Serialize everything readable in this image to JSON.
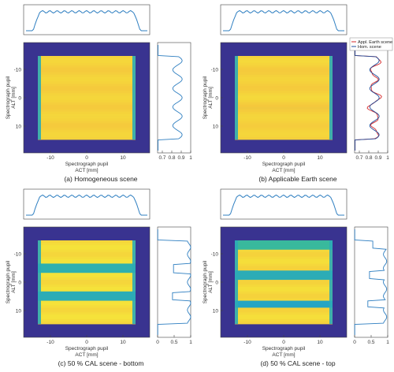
{
  "chart_data": [
    {
      "type": "heatmap",
      "caption": "(a) Homogeneous scene",
      "xlabel": "Spectrograph pupil\nACT [mm]",
      "ylabel": "Spectrograph pupil\nALT [mm]",
      "x_ticks": [
        "-10",
        "0",
        "10"
      ],
      "y_ticks": [
        "-10",
        "0",
        "10"
      ],
      "side_ticks": [
        "0.7",
        "0.8",
        "0.9",
        "1"
      ],
      "side_range": [
        0.65,
        1.0
      ],
      "scene": "homogeneous",
      "colormap": [
        "#3b2c8c",
        "#1f9fd0",
        "#3fbf90",
        "#f5e33a"
      ]
    },
    {
      "type": "heatmap",
      "caption": "(b) Applicable Earth scene",
      "xlabel": "Spectrograph pupil\nACT [mm]",
      "ylabel": "Spectrograph pupil\nALT [mm]",
      "x_ticks": [
        "-10",
        "0",
        "10"
      ],
      "y_ticks": [
        "-10",
        "0",
        "10"
      ],
      "side_ticks": [
        "0.7",
        "0.8",
        "0.9",
        "1"
      ],
      "side_range": [
        0.65,
        1.0
      ],
      "scene": "earth",
      "legend": [
        "Appl. Earth scene",
        "Hom. scene"
      ],
      "legend_colors": [
        "#d62728",
        "#1f4e9c"
      ],
      "colormap": [
        "#3b2c8c",
        "#1f9fd0",
        "#3fbf90",
        "#f5e33a"
      ]
    },
    {
      "type": "heatmap",
      "caption": "(c) 50 % CAL scene - bottom",
      "xlabel": "Spectrograph pupil\nACT [mm]",
      "ylabel": "Spectrograph pupil\nALT [mm]",
      "x_ticks": [
        "-10",
        "0",
        "10"
      ],
      "y_ticks": [
        "-10",
        "0",
        "10"
      ],
      "side_ticks": [
        "0",
        "0.5",
        "1"
      ],
      "side_range": [
        0.0,
        1.0
      ],
      "scene": "cal-bottom",
      "colormap": [
        "#3b2c8c",
        "#1f9fd0",
        "#3fbf90",
        "#f5e33a"
      ]
    },
    {
      "type": "heatmap",
      "caption": "(d) 50 % CAL scene - top",
      "xlabel": "Spectrograph pupil\nACT [mm]",
      "ylabel": "Spectrograph pupil\nALT [mm]",
      "x_ticks": [
        "-10",
        "0",
        "10"
      ],
      "y_ticks": [
        "-10",
        "0",
        "10"
      ],
      "side_ticks": [
        "0",
        "0.5",
        "1"
      ],
      "side_range": [
        0.0,
        1.0
      ],
      "scene": "cal-top",
      "colormap": [
        "#3b2c8c",
        "#1f9fd0",
        "#3fbf90",
        "#f5e33a"
      ]
    }
  ],
  "line_color": "#2f7fc1"
}
